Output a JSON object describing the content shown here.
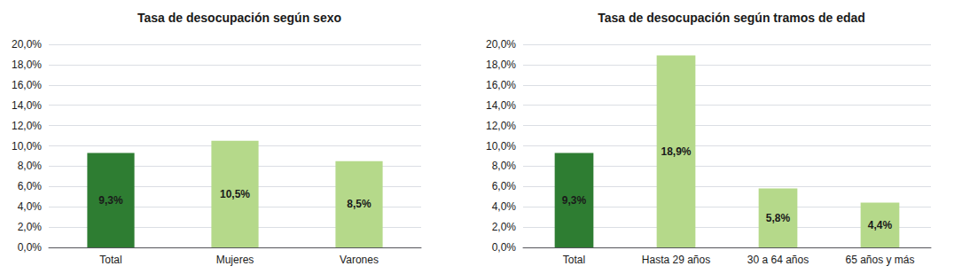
{
  "chart_data": [
    {
      "type": "bar",
      "title": "Tasa de desocupación según sexo",
      "categories": [
        "Total",
        "Mujeres",
        "Varones"
      ],
      "values": [
        9.3,
        10.5,
        8.5
      ],
      "value_labels": [
        "9,3%",
        "10,5%",
        "8,5%"
      ],
      "colors": [
        "#2e7d32",
        "#b5d98a",
        "#b5d98a"
      ],
      "ylim": [
        0,
        20
      ],
      "yticks": [
        {
          "value": 0,
          "label": "0,0%"
        },
        {
          "value": 2,
          "label": "2,0%"
        },
        {
          "value": 4,
          "label": "4,0%"
        },
        {
          "value": 6,
          "label": "6,0%"
        },
        {
          "value": 8,
          "label": "8,0%"
        },
        {
          "value": 10,
          "label": "10,0%"
        },
        {
          "value": 12,
          "label": "12,0%"
        },
        {
          "value": 14,
          "label": "14,0%"
        },
        {
          "value": 16,
          "label": "16,0%"
        },
        {
          "value": 18,
          "label": "18,0%"
        },
        {
          "value": 20,
          "label": "20,0%"
        }
      ],
      "grid": true,
      "data_labels": true
    },
    {
      "type": "bar",
      "title": "Tasa de desocupación según tramos de edad",
      "categories": [
        "Total",
        "Hasta 29 años",
        "30 a 64 años",
        "65 años y más"
      ],
      "values": [
        9.3,
        18.9,
        5.8,
        4.4
      ],
      "value_labels": [
        "9,3%",
        "18,9%",
        "5,8%",
        "4,4%"
      ],
      "colors": [
        "#2e7d32",
        "#b5d98a",
        "#b5d98a",
        "#b5d98a"
      ],
      "ylim": [
        0,
        20
      ],
      "yticks": [
        {
          "value": 0,
          "label": "0,0%"
        },
        {
          "value": 2,
          "label": "2,0%"
        },
        {
          "value": 4,
          "label": "4,0%"
        },
        {
          "value": 6,
          "label": "6,0%"
        },
        {
          "value": 8,
          "label": "8,0%"
        },
        {
          "value": 10,
          "label": "10,0%"
        },
        {
          "value": 12,
          "label": "12,0%"
        },
        {
          "value": 14,
          "label": "14,0%"
        },
        {
          "value": 16,
          "label": "16,0%"
        },
        {
          "value": 18,
          "label": "18,0%"
        },
        {
          "value": 20,
          "label": "20,0%"
        }
      ],
      "grid": true,
      "data_labels": true
    }
  ]
}
